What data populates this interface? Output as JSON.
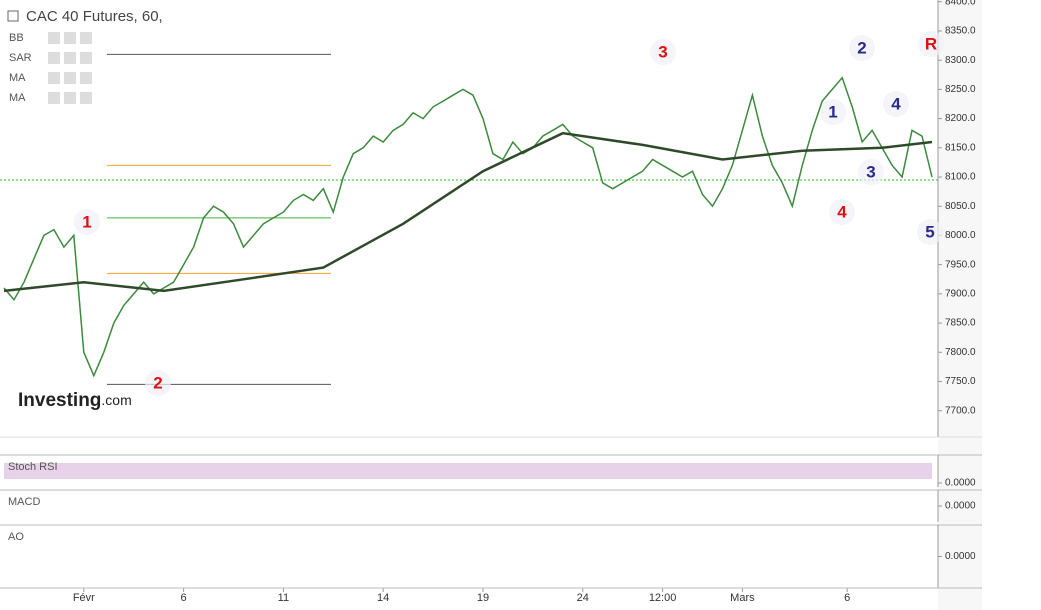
{
  "chart_data": {
    "type": "line",
    "title": "CAC 40 Futures, 60,",
    "indicators": [
      "BB",
      "SAR",
      "MA",
      "MA"
    ],
    "logo": "Investing",
    "logo_suffix": ".com",
    "xlim": [
      0,
      93
    ],
    "xticks": [
      {
        "value": 8,
        "label": "Févr"
      },
      {
        "value": 18,
        "label": "6"
      },
      {
        "value": 28,
        "label": "11"
      },
      {
        "value": 38,
        "label": "14"
      },
      {
        "value": 48,
        "label": "19"
      },
      {
        "value": 58,
        "label": "24"
      },
      {
        "value": 66,
        "label": "12:00"
      },
      {
        "value": 74,
        "label": "Mars"
      },
      {
        "value": 84.5,
        "label": "6"
      }
    ],
    "ylim": [
      7655,
      8403
    ],
    "yticks": [
      {
        "value": 7700,
        "label": "7700.0"
      },
      {
        "value": 7750,
        "label": "7750.0"
      },
      {
        "value": 7800,
        "label": "7800.0"
      },
      {
        "value": 7850,
        "label": "7850.0"
      },
      {
        "value": 7900,
        "label": "7900.0"
      },
      {
        "value": 7950,
        "label": "7950.0"
      },
      {
        "value": 8000,
        "label": "8000.0"
      },
      {
        "value": 8050,
        "label": "8050.0"
      },
      {
        "value": 8100,
        "label": "8100.0"
      },
      {
        "value": 8150,
        "label": "8150.0"
      },
      {
        "value": 8200,
        "label": "8200.0"
      },
      {
        "value": 8250,
        "label": "8250.0"
      },
      {
        "value": 8300,
        "label": "8300.0"
      },
      {
        "value": 8350,
        "label": "8350.0"
      },
      {
        "value": 8400,
        "label": "8400.0"
      }
    ],
    "series": [
      {
        "name": "Price",
        "color": "#3c8a3c",
        "x": [
          0,
          1,
          2,
          3,
          4,
          5,
          6,
          7,
          8,
          9,
          10,
          11,
          12,
          13,
          14,
          15,
          16,
          17,
          18,
          19,
          20,
          21,
          22,
          23,
          24,
          25,
          26,
          27,
          28,
          29,
          30,
          31,
          32,
          33,
          34,
          35,
          36,
          37,
          38,
          39,
          40,
          41,
          42,
          43,
          44,
          45,
          46,
          47,
          48,
          49,
          50,
          51,
          52,
          53,
          54,
          55,
          56,
          57,
          58,
          59,
          60,
          61,
          62,
          63,
          64,
          65,
          66,
          67,
          68,
          69,
          70,
          71,
          72,
          73,
          74,
          75,
          76,
          77,
          78,
          79,
          80,
          81,
          82,
          83,
          84,
          85,
          86,
          87,
          88,
          89,
          90,
          91,
          92,
          93
        ],
        "values": [
          7910,
          7890,
          7920,
          7960,
          8000,
          8010,
          7980,
          8000,
          7800,
          7760,
          7800,
          7850,
          7880,
          7900,
          7920,
          7900,
          7910,
          7920,
          7950,
          7980,
          8030,
          8050,
          8040,
          8020,
          7980,
          8000,
          8020,
          8030,
          8040,
          8060,
          8070,
          8060,
          8080,
          8040,
          8100,
          8140,
          8150,
          8170,
          8160,
          8180,
          8190,
          8210,
          8200,
          8220,
          8230,
          8240,
          8250,
          8240,
          8200,
          8140,
          8130,
          8160,
          8140,
          8150,
          8170,
          8180,
          8190,
          8170,
          8160,
          8150,
          8090,
          8080,
          8090,
          8100,
          8110,
          8130,
          8120,
          8110,
          8100,
          8110,
          8070,
          8050,
          8080,
          8120,
          8180,
          8240,
          8170,
          8120,
          8090,
          8050,
          8120,
          8180,
          8230,
          8250,
          8270,
          8220,
          8160,
          8180,
          8150,
          8120,
          8100,
          8180,
          8170,
          8100
        ]
      },
      {
        "name": "MA",
        "color": "#2f4a2a",
        "x": [
          0,
          8,
          16,
          24,
          32,
          40,
          48,
          56,
          64,
          72,
          80,
          88,
          93
        ],
        "values": [
          7905,
          7920,
          7905,
          7925,
          7945,
          8020,
          8110,
          8175,
          8155,
          8130,
          8145,
          8150,
          8160
        ]
      }
    ],
    "price_line": 8095,
    "levels": [
      {
        "value": 8310,
        "color": "#555555"
      },
      {
        "value": 8120,
        "color": "#f0a030"
      },
      {
        "value": 8030,
        "color": "#3cb43c"
      },
      {
        "value": 7935,
        "color": "#f0a030"
      },
      {
        "value": 7745,
        "color": "#555555"
      }
    ],
    "annotations": [
      {
        "text": "1",
        "color": "#e01010"
      },
      {
        "text": "2",
        "color": "#e01010"
      },
      {
        "text": "3",
        "color": "#e01010"
      },
      {
        "text": "4",
        "color": "#e01010"
      },
      {
        "text": "R",
        "color": "#e01010"
      },
      {
        "text": "1",
        "color": "#2a2a8a"
      },
      {
        "text": "2",
        "color": "#2a2a8a"
      },
      {
        "text": "3",
        "color": "#2a2a8a"
      },
      {
        "text": "4",
        "color": "#2a2a8a"
      },
      {
        "text": "5",
        "color": "#2a2a8a"
      }
    ],
    "panels": [
      {
        "name": "Stoch RSI",
        "ticks": [
          {
            "value": 0,
            "label": "0.0000"
          }
        ]
      },
      {
        "name": "MACD",
        "ticks": [
          {
            "value": 0,
            "label": "0.0000"
          }
        ]
      },
      {
        "name": "AO",
        "ticks": [
          {
            "value": 0,
            "label": "0.0000"
          }
        ]
      }
    ]
  }
}
